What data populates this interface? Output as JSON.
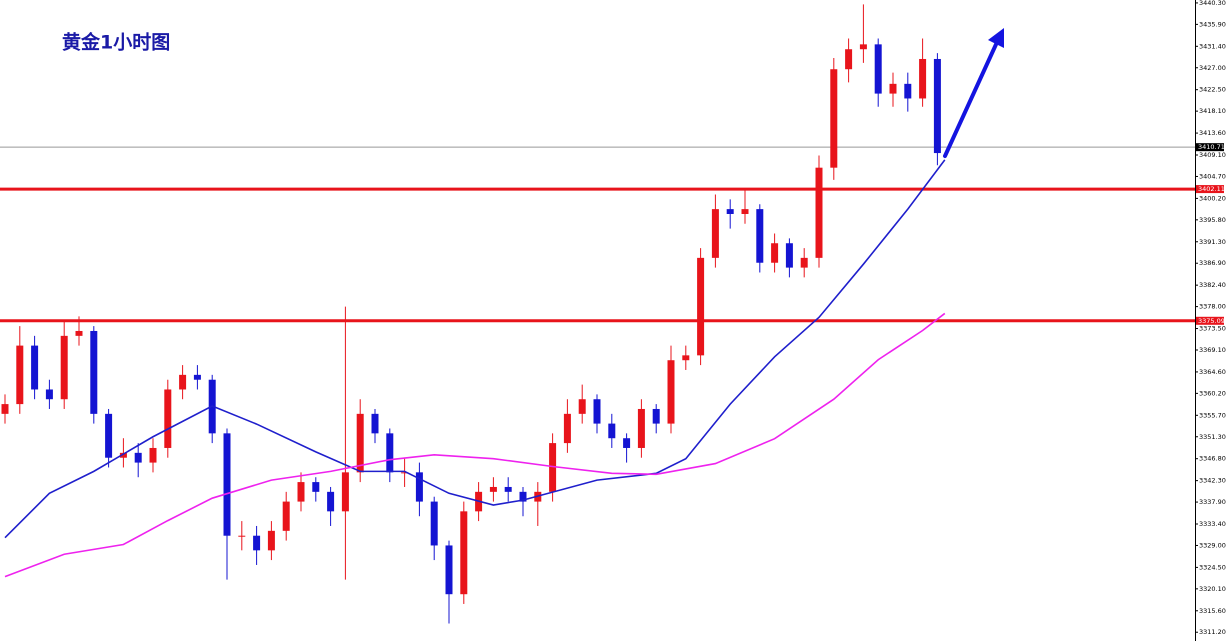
{
  "chart_data": {
    "type": "candlestick",
    "title": "黄金1小时图",
    "ylim": [
      3309.4,
      3440.9
    ],
    "yticks": [
      {
        "value": 3440.3,
        "label": "3440.30"
      },
      {
        "value": 3435.9,
        "label": "3435.90"
      },
      {
        "value": 3431.4,
        "label": "3431.40"
      },
      {
        "value": 3427.0,
        "label": "3427.00"
      },
      {
        "value": 3422.5,
        "label": "3422.50"
      },
      {
        "value": 3418.1,
        "label": "3418.10"
      },
      {
        "value": 3413.6,
        "label": "3413.60"
      },
      {
        "value": 3409.1,
        "label": "3409.10"
      },
      {
        "value": 3404.7,
        "label": "3404.70"
      },
      {
        "value": 3400.2,
        "label": "3400.20"
      },
      {
        "value": 3395.8,
        "label": "3395.80"
      },
      {
        "value": 3391.3,
        "label": "3391.30"
      },
      {
        "value": 3386.9,
        "label": "3386.90"
      },
      {
        "value": 3382.4,
        "label": "3382.40"
      },
      {
        "value": 3378.0,
        "label": "3378.00"
      },
      {
        "value": 3373.5,
        "label": "3373.50"
      },
      {
        "value": 3369.1,
        "label": "3369.10"
      },
      {
        "value": 3364.6,
        "label": "3364.60"
      },
      {
        "value": 3360.2,
        "label": "3360.20"
      },
      {
        "value": 3355.7,
        "label": "3355.70"
      },
      {
        "value": 3351.3,
        "label": "3351.30"
      },
      {
        "value": 3346.8,
        "label": "3346.80"
      },
      {
        "value": 3342.3,
        "label": "3342.30"
      },
      {
        "value": 3337.9,
        "label": "3337.90"
      },
      {
        "value": 3333.4,
        "label": "3333.40"
      },
      {
        "value": 3329.0,
        "label": "3329.00"
      },
      {
        "value": 3324.5,
        "label": "3324.50"
      },
      {
        "value": 3320.1,
        "label": "3320.10"
      },
      {
        "value": 3315.6,
        "label": "3315.60"
      },
      {
        "value": 3311.2,
        "label": "3311.20"
      }
    ],
    "up_color": "#e8141b",
    "down_color": "#1414d2",
    "open": [
      3356,
      3358,
      3370,
      3361,
      3359,
      3372,
      3373,
      3356,
      3347,
      3348,
      3346,
      3349,
      3361,
      3364,
      3363,
      3352,
      3331,
      3331,
      3328,
      3332,
      3338,
      3342,
      3340,
      3336,
      3344,
      3356,
      3352,
      3344,
      3344,
      3338,
      3329,
      3319,
      3336,
      3340,
      3341,
      3340,
      3338,
      3340,
      3350,
      3356,
      3359,
      3354,
      3351,
      3349,
      3357,
      3354,
      3367,
      3368,
      3388,
      3398,
      3397,
      3398,
      3387,
      3391,
      3386,
      3388,
      3406.5,
      3426.7,
      3430.8,
      3431.8,
      3421.7,
      3423.7,
      3420.7,
      3428.8
    ],
    "high": [
      3360,
      3374,
      3372,
      3363,
      3375,
      3376,
      3374,
      3357,
      3351,
      3350,
      3351,
      3363,
      3366,
      3366,
      3364,
      3353,
      3334,
      3333,
      3334,
      3340,
      3344,
      3343,
      3341,
      3378,
      3359,
      3357,
      3353,
      3347,
      3346,
      3339,
      3330,
      3338,
      3342,
      3343,
      3343,
      3341,
      3342,
      3352,
      3359,
      3362,
      3360,
      3356,
      3352,
      3359,
      3358,
      3370,
      3370,
      3390,
      3401,
      3400,
      3402,
      3399,
      3393,
      3392,
      3390,
      3409,
      3429,
      3433,
      3440,
      3433,
      3426,
      3426,
      3433,
      3430
    ],
    "low": [
      3354,
      3356,
      3359,
      3357,
      3357,
      3370,
      3354,
      3345,
      3345,
      3343,
      3344,
      3347,
      3359,
      3361,
      3350,
      3322,
      3328,
      3325,
      3326,
      3330,
      3336,
      3338,
      3333,
      3322,
      3342,
      3350,
      3342,
      3341,
      3335,
      3326,
      3313,
      3317,
      3334,
      3338,
      3338,
      3335,
      3333,
      3338,
      3348,
      3354,
      3352,
      3349,
      3346,
      3347,
      3352,
      3352,
      3365,
      3366,
      3386,
      3394,
      3395,
      3385,
      3385,
      3384,
      3384,
      3386,
      3404,
      3424,
      3428,
      3419,
      3419,
      3418,
      3419,
      3407
    ],
    "close": [
      3358,
      3370,
      3361,
      3359,
      3372,
      3373,
      3356,
      3347,
      3348,
      3346,
      3349,
      3361,
      3364,
      3363,
      3352,
      3331,
      3331,
      3328,
      3332,
      3338,
      3342,
      3340,
      3336,
      3344,
      3356,
      3352,
      3344,
      3344,
      3338,
      3329,
      3319,
      3336,
      3340,
      3341,
      3340,
      3338,
      3340,
      3350,
      3356,
      3359,
      3354,
      3351,
      3349,
      3357,
      3354,
      3367,
      3368,
      3388,
      3398,
      3397,
      3398,
      3387,
      3391,
      3386,
      3388,
      3406.5,
      3426.7,
      3430.8,
      3431.8,
      3421.7,
      3423.7,
      3420.7,
      3428.8,
      3409.5
    ],
    "lines": [
      {
        "color": "#1f1fcc",
        "x": [
          0,
          3,
          6,
          10,
          14,
          17,
          21,
          24,
          27,
          30,
          33,
          35,
          40,
          44,
          46,
          49,
          52,
          55,
          58,
          61,
          63.5
        ],
        "values": [
          3330.6,
          3339.7,
          3344.2,
          3351.3,
          3357.6,
          3353.9,
          3348.2,
          3344.2,
          3344.2,
          3339.7,
          3337.3,
          3338.3,
          3342.4,
          3343.8,
          3346.8,
          3358.0,
          3367.7,
          3375.8,
          3386.7,
          3398.0,
          3408.1
        ]
      },
      {
        "color": "#ee22ee",
        "x": [
          0,
          4,
          8,
          11,
          14,
          18,
          22,
          26,
          29,
          33,
          37,
          41,
          44,
          48,
          52,
          56,
          59,
          62,
          63.5
        ],
        "values": [
          3322.6,
          3327.2,
          3329.2,
          3334.1,
          3338.7,
          3342.4,
          3344.2,
          3346.6,
          3347.6,
          3346.8,
          3345.2,
          3343.8,
          3343.6,
          3345.8,
          3350.9,
          3359.0,
          3367.1,
          3373.1,
          3376.6
        ]
      }
    ],
    "hlines": [
      {
        "value": 3410.71,
        "label": "3410.71",
        "color": "#999999",
        "box": "#000000"
      },
      {
        "value": 3402.11,
        "label": "3402.11",
        "color": "#e8141b",
        "box": "#e8141b"
      },
      {
        "value": 3375.09,
        "label": "3375.09",
        "color": "#e8141b",
        "box": "#e8141b"
      }
    ]
  }
}
